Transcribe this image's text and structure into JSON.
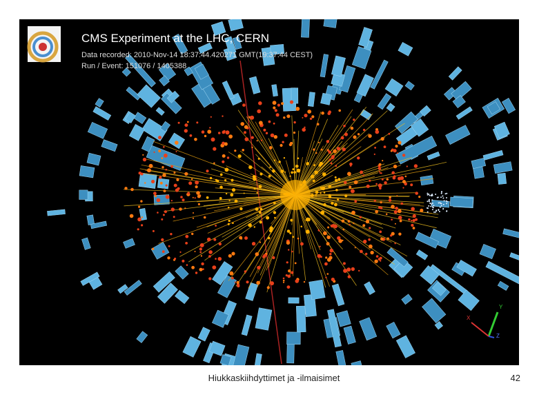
{
  "slide": {
    "image": {
      "title": "CMS Experiment at the LHC, CERN",
      "recorded": "Data recorded: 2010-Nov-14 18:37:44.420271 GMT(19:37:44 CEST)",
      "run_event": "Run / Event: 151076 / 1405388",
      "axes": [
        "Y",
        "X",
        "Z"
      ]
    },
    "footer": "Hiukkaskiihdyttimet ja -ilmaisimet",
    "page_number": "42"
  }
}
